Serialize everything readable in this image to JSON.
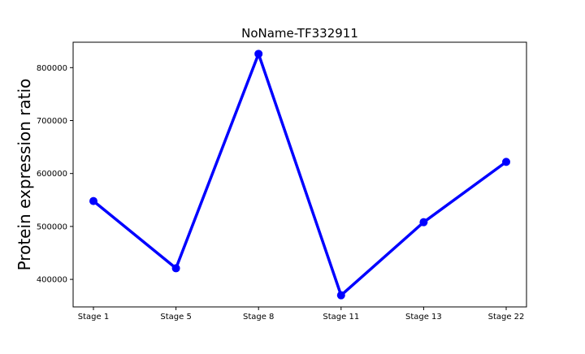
{
  "chart_data": {
    "type": "line",
    "title": "NoName-TF332911",
    "xlabel": "",
    "ylabel": "Protein expression ratio",
    "categories": [
      "Stage 1",
      "Stage 5",
      "Stage 8",
      "Stage 11",
      "Stage 13",
      "Stage 22"
    ],
    "series": [
      {
        "values": [
          548000,
          421000,
          826000,
          370000,
          508000,
          622000
        ],
        "color": "#0000ff",
        "marker": "circle"
      }
    ],
    "ylim": [
      348000,
      848000
    ],
    "yticks": [
      400000,
      500000,
      600000,
      700000,
      800000
    ],
    "ytick_labels": [
      "400000",
      "500000",
      "600000",
      "700000",
      "800000"
    ],
    "grid": false,
    "legend": "none"
  }
}
